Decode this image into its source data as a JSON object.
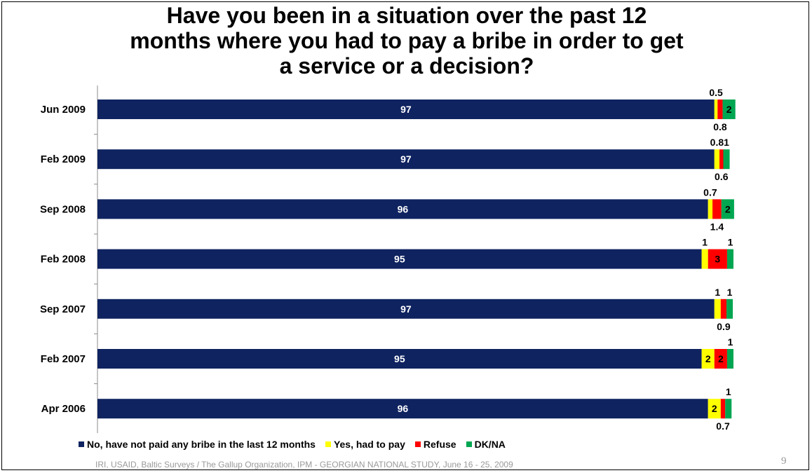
{
  "title_lines": [
    "Have you been in a situation over the past 12",
    "months where you had to pay a bribe in order to get",
    "a service or a decision?"
  ],
  "source_text": "IRI, USAID,  Baltic Surveys / The Gallup Organization, IPM - GEORGIAN NATIONAL STUDY, June 16 - 25, 2009",
  "page_number": "9",
  "colors": {
    "no": "#0f2360",
    "yes": "#ffff00",
    "refuse": "#ff0000",
    "dkna": "#00a651"
  },
  "chart_data": {
    "type": "bar",
    "orientation": "horizontal",
    "stacked": true,
    "categories": [
      "Jun 2009",
      "Feb 2009",
      "Sep 2008",
      "Feb 2008",
      "Sep 2007",
      "Feb 2007",
      "Apr 2006"
    ],
    "series": [
      {
        "name": "No, have not paid any bribe in the last 12 months",
        "values": [
          97,
          97,
          96,
          95,
          97,
          95,
          96
        ],
        "labels": [
          "97",
          "97",
          "96",
          "95",
          "97",
          "95",
          "96"
        ]
      },
      {
        "name": "Yes, had to pay",
        "values": [
          0.5,
          0.8,
          0.7,
          1,
          1,
          2,
          2
        ],
        "labels": [
          "0.5",
          "0.8",
          "0.7",
          "1",
          "1",
          "2",
          "2"
        ]
      },
      {
        "name": "Refuse",
        "values": [
          0.8,
          0.6,
          1.4,
          3,
          0.9,
          2,
          0.7
        ],
        "labels": [
          "0.8",
          "0.6",
          "1.4",
          "3",
          "0.9",
          "2",
          "0.7"
        ]
      },
      {
        "name": "DK/NA",
        "values": [
          2,
          1,
          2,
          1,
          1,
          1,
          1
        ],
        "labels": [
          "2",
          "1",
          "2",
          "1",
          "1",
          "1",
          "1"
        ]
      }
    ],
    "legend_position": "bottom",
    "grid": false
  }
}
